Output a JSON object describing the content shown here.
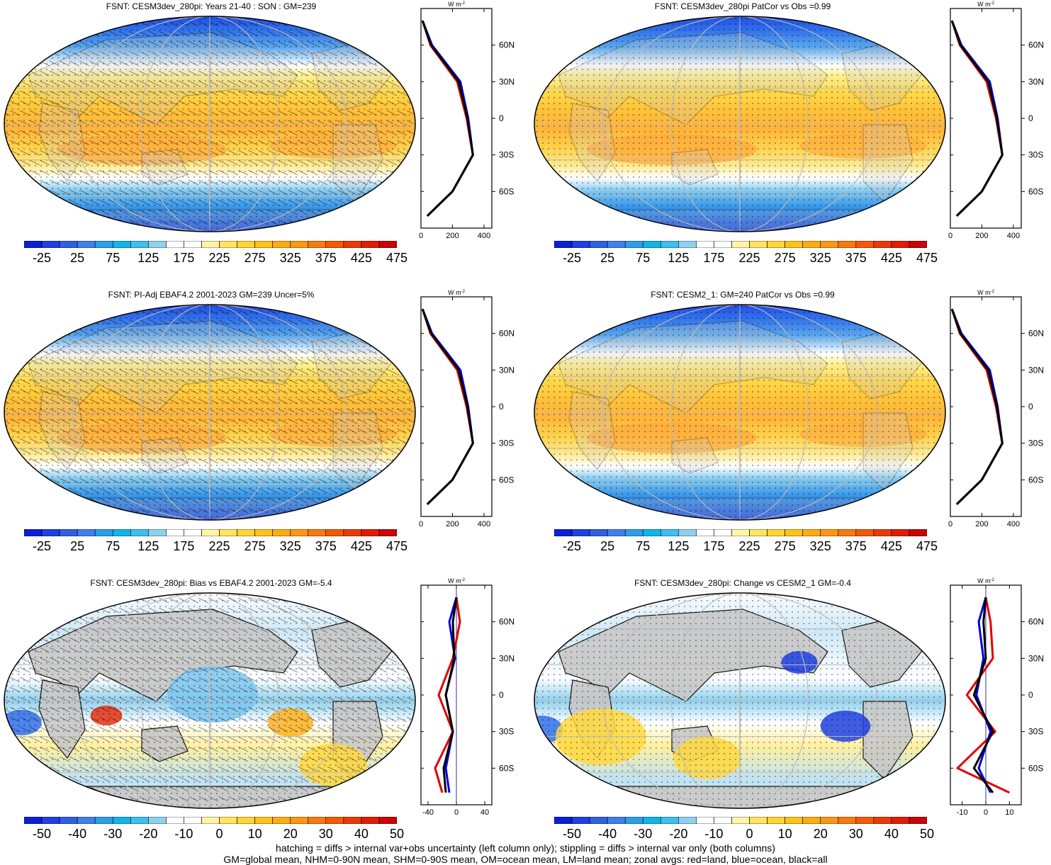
{
  "panels": [
    {
      "title": "FSNT: CESM3dev_280pi: Years 21-40 : SON : GM=239",
      "kind": "abs",
      "hatch": true
    },
    {
      "title": "FSNT: CESM3dev_280pi PatCor vs Obs =0.99",
      "kind": "abs",
      "hatch": false
    },
    {
      "title": "FSNT: PI-Adj EBAF4.2 2001-2023 GM=239 Uncer=5%",
      "kind": "abs",
      "hatch": true
    },
    {
      "title": "FSNT: CESM2_1: GM=240 PatCor vs Obs =0.99",
      "kind": "abs",
      "hatch": false
    },
    {
      "title": "FSNT: CESM3dev_280pi: Bias vs EBAF4.2 2001-2023  GM=-5.4",
      "kind": "diff",
      "hatch": true
    },
    {
      "title": "FSNT: CESM3dev_280pi: Change vs CESM2_1 GM=-0.4",
      "kind": "diff2",
      "hatch": false
    }
  ],
  "colorbars": {
    "abs": {
      "labels": [
        "-25",
        "25",
        "75",
        "125",
        "175",
        "225",
        "275",
        "325",
        "375",
        "425",
        "475"
      ],
      "colors": [
        "#0a1fd6",
        "#1f3fe0",
        "#2f5fe6",
        "#3f7ff0",
        "#2d9ee8",
        "#11b4ea",
        "#3cc0ee",
        "#8fd0ee",
        "#ffffff",
        "#ffffff",
        "#fff5a8",
        "#ffe45e",
        "#ffd535",
        "#ffc21a",
        "#ffac14",
        "#ff9612",
        "#f8790e",
        "#f25a0a",
        "#ea3a08",
        "#e31c07",
        "#c80606"
      ]
    },
    "diff": {
      "labels": [
        "-50",
        "-40",
        "-30",
        "-20",
        "-10",
        "0",
        "10",
        "20",
        "30",
        "40",
        "50"
      ],
      "colors": [
        "#0a1fd6",
        "#1f3fe0",
        "#2f5fe6",
        "#3f7ff0",
        "#2d9ee8",
        "#11b4ea",
        "#3cc0ee",
        "#8fd0ee",
        "#ffffff",
        "#ffffff",
        "#fff5a8",
        "#ffe45e",
        "#ffd535",
        "#ffc21a",
        "#ffac14",
        "#ff9612",
        "#f8790e",
        "#f25a0a",
        "#ea3a08",
        "#e31c07",
        "#c80606"
      ]
    }
  },
  "profile_axes": {
    "unit_label": "W m",
    "unit_sup": "-2",
    "lat_labels": [
      "60N",
      "30N",
      "0",
      "30S",
      "60S"
    ],
    "abs_x_ticks": [
      "0",
      "200",
      "400"
    ],
    "bias_x_ticks": [
      "-40",
      "0",
      "40"
    ],
    "change_x_ticks": [
      "-10",
      "0",
      "10"
    ]
  },
  "chart_data": [
    {
      "type": "line",
      "title": "FSNT: CESM3dev_280pi: Years 21-40 : SON : GM=239",
      "xlabel": "W m-2",
      "x_range": [
        0,
        450
      ],
      "y": [
        "80N",
        "60N",
        "30N",
        "0",
        "30S",
        "60S",
        "80S"
      ],
      "series": [
        {
          "name": "land",
          "color": "#e00000",
          "values": [
            10,
            60,
            230,
            290,
            330,
            200,
            40
          ]
        },
        {
          "name": "ocean",
          "color": "#0000e0",
          "values": [
            10,
            70,
            250,
            300,
            330,
            200,
            40
          ]
        },
        {
          "name": "all",
          "color": "#000000",
          "values": [
            10,
            65,
            240,
            295,
            330,
            200,
            40
          ]
        }
      ]
    },
    {
      "type": "line",
      "title": "FSNT: CESM3dev_280pi PatCor vs Obs =0.99",
      "xlabel": "W m-2",
      "x_range": [
        0,
        450
      ],
      "y": [
        "80N",
        "60N",
        "30N",
        "0",
        "30S",
        "60S",
        "80S"
      ],
      "series": [
        {
          "name": "land",
          "color": "#e00000",
          "values": [
            10,
            60,
            230,
            290,
            330,
            200,
            40
          ]
        },
        {
          "name": "ocean",
          "color": "#0000e0",
          "values": [
            10,
            70,
            250,
            300,
            330,
            200,
            40
          ]
        },
        {
          "name": "all",
          "color": "#000000",
          "values": [
            10,
            65,
            240,
            295,
            330,
            200,
            40
          ]
        }
      ]
    },
    {
      "type": "line",
      "title": "FSNT: PI-Adj EBAF4.2 2001-2023 GM=239 Uncer=5%",
      "xlabel": "W m-2",
      "x_range": [
        0,
        450
      ],
      "y": [
        "80N",
        "60N",
        "30N",
        "0",
        "30S",
        "60S",
        "80S"
      ],
      "series": [
        {
          "name": "land",
          "color": "#e00000",
          "values": [
            10,
            60,
            230,
            290,
            330,
            200,
            40
          ]
        },
        {
          "name": "ocean",
          "color": "#0000e0",
          "values": [
            10,
            70,
            250,
            300,
            330,
            200,
            40
          ]
        },
        {
          "name": "all",
          "color": "#000000",
          "values": [
            10,
            65,
            240,
            295,
            330,
            200,
            40
          ]
        }
      ]
    },
    {
      "type": "line",
      "title": "FSNT: CESM2_1: GM=240 PatCor vs Obs =0.99",
      "xlabel": "W m-2",
      "x_range": [
        0,
        450
      ],
      "y": [
        "80N",
        "60N",
        "30N",
        "0",
        "30S",
        "60S",
        "80S"
      ],
      "series": [
        {
          "name": "land",
          "color": "#e00000",
          "values": [
            10,
            60,
            230,
            290,
            330,
            200,
            40
          ]
        },
        {
          "name": "ocean",
          "color": "#0000e0",
          "values": [
            10,
            70,
            250,
            300,
            330,
            200,
            40
          ]
        },
        {
          "name": "all",
          "color": "#000000",
          "values": [
            10,
            65,
            240,
            295,
            330,
            200,
            40
          ]
        }
      ]
    },
    {
      "type": "line",
      "title": "FSNT: CESM3dev_280pi: Bias vs EBAF4.2 2001-2023  GM=-5.4",
      "xlabel": "W m-2",
      "x_range": [
        -50,
        50
      ],
      "y": [
        "80N",
        "60N",
        "30N",
        "0",
        "30S",
        "60S",
        "80S"
      ],
      "series": [
        {
          "name": "land",
          "color": "#e00000",
          "values": [
            0,
            5,
            -5,
            -25,
            -5,
            -30,
            -20
          ]
        },
        {
          "name": "ocean",
          "color": "#0000e0",
          "values": [
            0,
            -10,
            -2,
            -15,
            -5,
            -15,
            -10
          ]
        },
        {
          "name": "all",
          "color": "#000000",
          "values": [
            0,
            -5,
            -3,
            -15,
            -5,
            -18,
            -15
          ]
        }
      ]
    },
    {
      "type": "line",
      "title": "FSNT: CESM3dev_280pi: Change vs CESM2_1 GM=-0.4",
      "xlabel": "W m-2",
      "x_range": [
        -15,
        15
      ],
      "y": [
        "80N",
        "60N",
        "30N",
        "0",
        "30S",
        "60S",
        "80S"
      ],
      "series": [
        {
          "name": "land",
          "color": "#e00000",
          "values": [
            0,
            2,
            3,
            -8,
            4,
            -12,
            10
          ]
        },
        {
          "name": "ocean",
          "color": "#0000e0",
          "values": [
            0,
            -3,
            -1,
            -4,
            2,
            -3,
            2
          ]
        },
        {
          "name": "all",
          "color": "#000000",
          "values": [
            0,
            -1,
            0,
            -5,
            3,
            -5,
            3
          ]
        }
      ]
    }
  ],
  "footer": {
    "line1": "hatching = diffs > internal var+obs uncertainty (left column only); stippling = diffs > internal var only (both columns)",
    "line2": "GM=global mean, NHM=0-90N mean, SHM=0-90S mean, OM=ocean mean, LM=land mean; zonal avgs: red=land, blue=ocean, black=all"
  }
}
